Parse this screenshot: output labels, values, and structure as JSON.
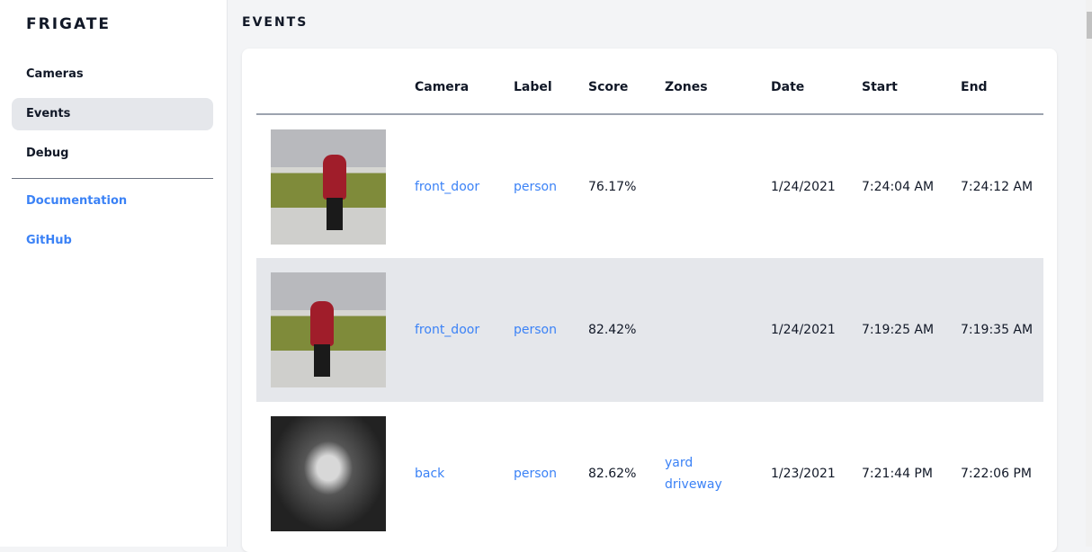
{
  "sidebar": {
    "brand": "FRIGATE",
    "items": [
      {
        "label": "Cameras"
      },
      {
        "label": "Events",
        "active": true
      },
      {
        "label": "Debug"
      }
    ],
    "links": [
      {
        "label": "Documentation"
      },
      {
        "label": "GitHub"
      }
    ]
  },
  "page": {
    "title": "EVENTS"
  },
  "table": {
    "headers": [
      "",
      "Camera",
      "Label",
      "Score",
      "Zones",
      "Date",
      "Start",
      "End"
    ],
    "rows": [
      {
        "camera": "front_door",
        "label": "person",
        "score": "76.17%",
        "zones": [
          "",
          ""
        ],
        "date": "1/24/2021",
        "start": "7:24:04 AM",
        "end": "7:24:12 AM"
      },
      {
        "camera": "front_door",
        "label": "person",
        "score": "82.42%",
        "zones": [
          "",
          ""
        ],
        "date": "1/24/2021",
        "start": "7:19:25 AM",
        "end": "7:19:35 AM"
      },
      {
        "camera": "back",
        "label": "person",
        "score": "82.62%",
        "zones": [
          "yard",
          "driveway"
        ],
        "date": "1/23/2021",
        "start": "7:21:44 PM",
        "end": "7:22:06 PM"
      }
    ]
  },
  "colors": {
    "link": "#3b82f6",
    "active_bg": "#e5e7eb",
    "bg": "#f3f4f6"
  }
}
